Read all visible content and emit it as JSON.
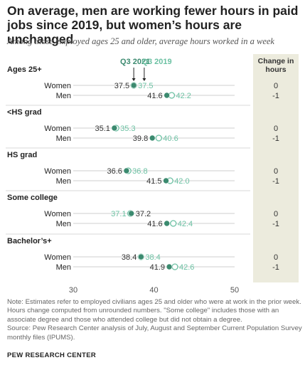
{
  "title": "On average, men are working fewer hours in paid jobs since 2019, but women’s hours are unchanged",
  "subtitle": "Among those employed ages 25 and older, average hours worked in a week",
  "change_header": "Change in hours",
  "note": "Note: Estimates refer to employed civilians ages 25 and older who were at work in the prior week. Hours change computed from unrounded numbers. \"Some college\" includes those with an associate degree and those who attended college but did not obtain a degree.",
  "source": "Source: Pew Research Center analysis of July, August and September Current Population Survey monthly files (IPUMS).",
  "footer": "PEW RESEARCH CENTER",
  "colors": {
    "q2021": "#3b8a6f",
    "q2019": "#6cc1a3",
    "line": "#cfcfcf",
    "panel": "#ecebdd"
  },
  "chart_data": {
    "type": "dot",
    "title": "On average, men are working fewer hours in paid jobs since 2019, but women’s hours are unchanged",
    "series": [
      {
        "name": "Q3 2021"
      },
      {
        "name": "Q3 2019"
      }
    ],
    "xlim": [
      30,
      50
    ],
    "xticks": [
      "30",
      "40",
      "50"
    ],
    "groups": [
      {
        "label": "Ages 25+",
        "rows": [
          {
            "label": "Women",
            "q2021": 37.5,
            "q2019": 37.5,
            "label2021": "37.5",
            "label2019": "37.5",
            "change": "0"
          },
          {
            "label": "Men",
            "q2021": 41.6,
            "q2019": 42.2,
            "label2021": "41.6",
            "label2019": "42.2",
            "change": "-1"
          }
        ]
      },
      {
        "label": "<HS grad",
        "rows": [
          {
            "label": "Women",
            "q2021": 35.1,
            "q2019": 35.3,
            "label2021": "35.1",
            "label2019": "35.3",
            "change": "0"
          },
          {
            "label": "Men",
            "q2021": 39.8,
            "q2019": 40.6,
            "label2021": "39.8",
            "label2019": "40.6",
            "change": "-1"
          }
        ]
      },
      {
        "label": "HS grad",
        "rows": [
          {
            "label": "Women",
            "q2021": 36.6,
            "q2019": 36.8,
            "label2021": "36.6",
            "label2019": "36.8",
            "change": "0"
          },
          {
            "label": "Men",
            "q2021": 41.5,
            "q2019": 42.0,
            "label2021": "41.5",
            "label2019": "42.0",
            "change": "-1"
          }
        ]
      },
      {
        "label": "Some college",
        "rows": [
          {
            "label": "Women",
            "q2021": 37.2,
            "q2019": 37.1,
            "label2021": "37.2",
            "label2019": "37.1",
            "change": "0"
          },
          {
            "label": "Men",
            "q2021": 41.6,
            "q2019": 42.4,
            "label2021": "41.6",
            "label2019": "42.4",
            "change": "-1"
          }
        ]
      },
      {
        "label": "Bachelor’s+",
        "rows": [
          {
            "label": "Women",
            "q2021": 38.4,
            "q2019": 38.4,
            "label2021": "38.4",
            "label2019": "38.4",
            "change": "0"
          },
          {
            "label": "Men",
            "q2021": 41.9,
            "q2019": 42.6,
            "label2021": "41.9",
            "label2019": "42.6",
            "change": "-1"
          }
        ]
      }
    ]
  }
}
